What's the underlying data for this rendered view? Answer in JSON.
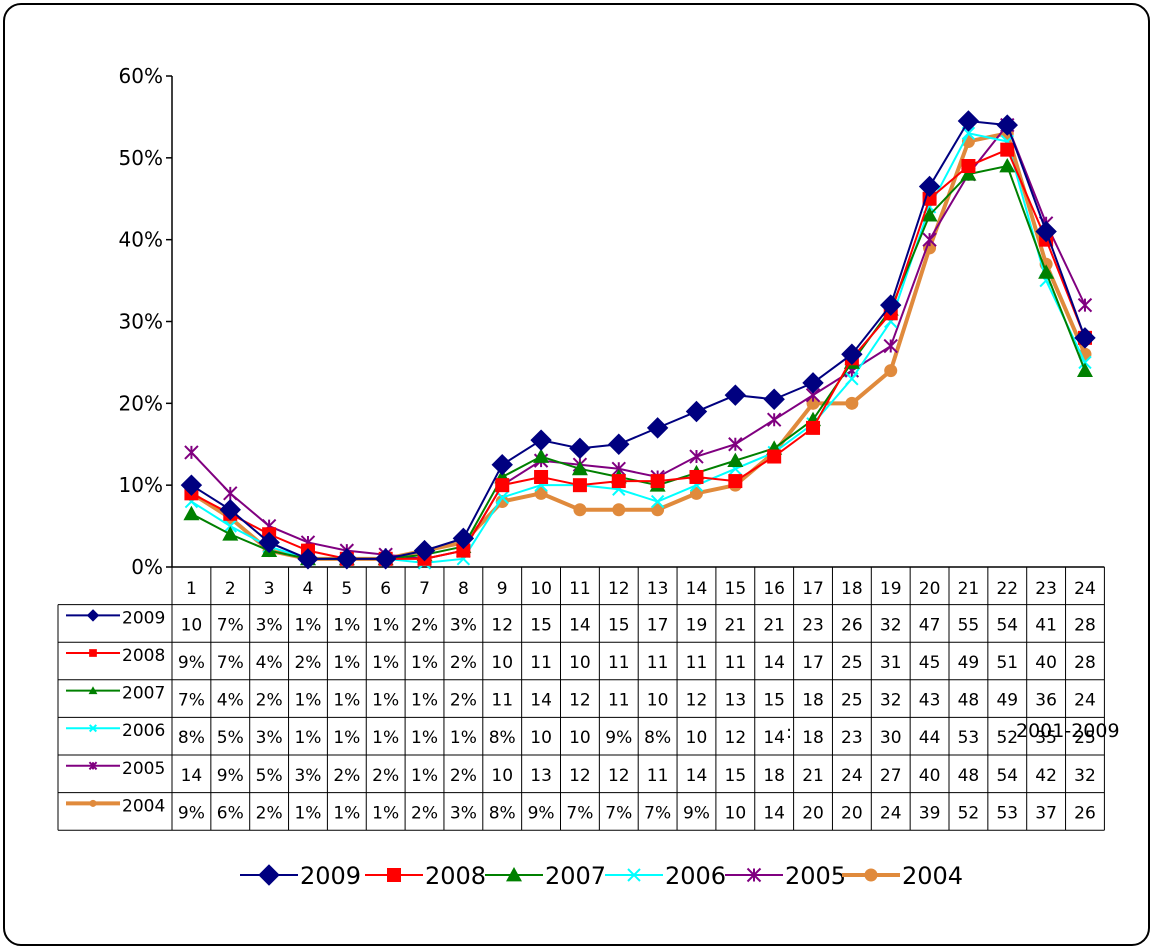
{
  "chart_data": {
    "type": "line",
    "categories": [
      "1",
      "2",
      "3",
      "4",
      "5",
      "6",
      "7",
      "8",
      "9",
      "10",
      "11",
      "12",
      "13",
      "14",
      "15",
      "16",
      "17",
      "18",
      "19",
      "20",
      "21",
      "22",
      "23",
      "24"
    ],
    "ylim": [
      0,
      0.6
    ],
    "yticks": [
      "0%",
      "10%",
      "20%",
      "30%",
      "40%",
      "50%",
      "60%"
    ],
    "grid": false,
    "legend_position": "bottom",
    "series": [
      {
        "name": "2009",
        "color": "#000080",
        "marker": "diamond",
        "values": [
          0.1,
          0.07,
          0.03,
          0.01,
          0.01,
          0.01,
          0.02,
          0.035,
          0.125,
          0.155,
          0.145,
          0.15,
          0.17,
          0.19,
          0.21,
          0.205,
          0.225,
          0.26,
          0.32,
          0.465,
          0.545,
          0.54,
          0.41,
          0.28
        ],
        "labels": [
          "10",
          "7%",
          "3%",
          "1%",
          "1%",
          "1%",
          "2%",
          "3%",
          "12",
          "15",
          "14",
          "15",
          "17",
          "19",
          "21",
          "21",
          "23",
          "26",
          "32",
          "47",
          "55",
          "54",
          "41",
          "28"
        ]
      },
      {
        "name": "2008",
        "color": "#ff0000",
        "marker": "square",
        "values": [
          0.09,
          0.065,
          0.04,
          0.02,
          0.01,
          0.01,
          0.01,
          0.02,
          0.1,
          0.11,
          0.1,
          0.105,
          0.105,
          0.11,
          0.105,
          0.135,
          0.17,
          0.255,
          0.31,
          0.45,
          0.49,
          0.51,
          0.4,
          0.28
        ],
        "labels": [
          "9%",
          "7%",
          "4%",
          "2%",
          "1%",
          "1%",
          "1%",
          "2%",
          "10",
          "11",
          "10",
          "11",
          "11",
          "11",
          "11",
          "14",
          "17",
          "25",
          "31",
          "45",
          "49",
          "51",
          "40",
          "28"
        ]
      },
      {
        "name": "2007",
        "color": "#008000",
        "marker": "triangle",
        "values": [
          0.065,
          0.04,
          0.02,
          0.01,
          0.01,
          0.01,
          0.015,
          0.025,
          0.11,
          0.135,
          0.12,
          0.11,
          0.1,
          0.115,
          0.13,
          0.145,
          0.18,
          0.25,
          0.315,
          0.43,
          0.48,
          0.49,
          0.36,
          0.24
        ],
        "labels": [
          "7%",
          "4%",
          "2%",
          "1%",
          "1%",
          "1%",
          "1%",
          "2%",
          "11",
          "14",
          "12",
          "11",
          "10",
          "12",
          "13",
          "15",
          "18",
          "25",
          "32",
          "43",
          "48",
          "49",
          "36",
          "24"
        ]
      },
      {
        "name": "2006",
        "color": "#00ffff",
        "marker": "x",
        "values": [
          0.08,
          0.05,
          0.025,
          0.01,
          0.01,
          0.01,
          0.005,
          0.01,
          0.085,
          0.1,
          0.1,
          0.095,
          0.08,
          0.1,
          0.12,
          0.14,
          0.175,
          0.23,
          0.3,
          0.44,
          0.53,
          0.52,
          0.35,
          0.25
        ],
        "labels": [
          "8%",
          "5%",
          "3%",
          "1%",
          "1%",
          "1%",
          "1%",
          "1%",
          "8%",
          "10",
          "10",
          "9%",
          "8%",
          "10",
          "12",
          "14",
          "18",
          "23",
          "30",
          "44",
          "53",
          "52",
          "35",
          "25"
        ]
      },
      {
        "name": "2005",
        "color": "#800080",
        "marker": "star",
        "values": [
          0.14,
          0.09,
          0.05,
          0.03,
          0.02,
          0.015,
          0.01,
          0.02,
          0.1,
          0.13,
          0.125,
          0.12,
          0.11,
          0.135,
          0.15,
          0.18,
          0.21,
          0.24,
          0.27,
          0.4,
          0.48,
          0.54,
          0.42,
          0.32
        ],
        "labels": [
          "14",
          "9%",
          "5%",
          "3%",
          "2%",
          "2%",
          "1%",
          "2%",
          "10",
          "13",
          "12",
          "12",
          "11",
          "14",
          "15",
          "18",
          "21",
          "24",
          "27",
          "40",
          "48",
          "54",
          "42",
          "32"
        ]
      },
      {
        "name": "2004",
        "color": "#e08a3c",
        "marker": "circle",
        "values": [
          0.09,
          0.06,
          0.02,
          0.01,
          0.01,
          0.01,
          0.02,
          0.03,
          0.08,
          0.09,
          0.07,
          0.07,
          0.07,
          0.09,
          0.1,
          0.14,
          0.2,
          0.2,
          0.24,
          0.39,
          0.52,
          0.53,
          0.37,
          0.26
        ],
        "labels": [
          "9%",
          "6%",
          "2%",
          "1%",
          "1%",
          "1%",
          "2%",
          "3%",
          "8%",
          "9%",
          "7%",
          "7%",
          "7%",
          "9%",
          "10",
          "14",
          "20",
          "20",
          "24",
          "39",
          "52",
          "53",
          "37",
          "26"
        ]
      }
    ]
  },
  "footer": {
    "colon": ":",
    "source": "2001-2009"
  }
}
